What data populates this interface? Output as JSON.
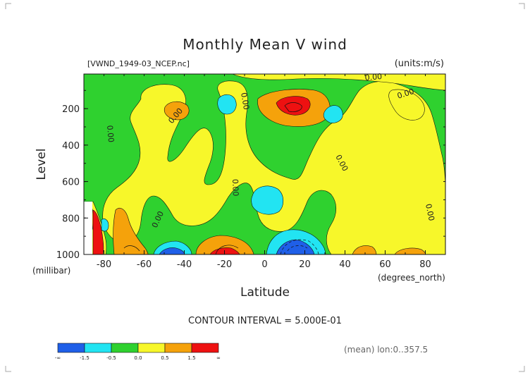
{
  "chart_data": {
    "type": "heatmap",
    "title": "Monthly Mean V wind",
    "file_label": "[VWND_1949-03_NCEP.nc]",
    "units_label": "(units:m/s)",
    "xlabel": "Latitude",
    "x_units": "(degrees_north)",
    "ylabel": "Level",
    "y_units": "(millibar)",
    "xlim": [
      -90,
      90
    ],
    "ylim": [
      1000,
      10
    ],
    "x_ticks": [
      "-80",
      "-60",
      "-40",
      "-20",
      "0",
      "20",
      "40",
      "60",
      "80"
    ],
    "y_ticks": [
      "200",
      "400",
      "600",
      "800",
      "1000"
    ],
    "contour_interval": "CONTOUR INTERVAL = 5.000E-01",
    "contour_label": "0.00",
    "colorbar": {
      "labels": [
        "-∞",
        "-1.5",
        "-0.5",
        "0.0",
        "0.5",
        "1.5",
        "∞"
      ],
      "colors": [
        "#1f5fe8",
        "#22e4f2",
        "#2fd12f",
        "#f7f72a",
        "#f5a20b",
        "#ee1111"
      ]
    },
    "footer_note": "(mean) lon:0..357.5",
    "regions": [
      {
        "level": "positive",
        "approx_lat": -20,
        "approx_level": 980
      },
      {
        "level": "negative",
        "approx_lat": -50,
        "approx_level": 990
      },
      {
        "level": "negative",
        "approx_lat": 15,
        "approx_level": 980
      },
      {
        "level": "strong_positive",
        "approx_lat": 20,
        "approx_level": 170
      },
      {
        "level": "negative",
        "approx_lat": -3,
        "approx_level": 700
      }
    ]
  }
}
